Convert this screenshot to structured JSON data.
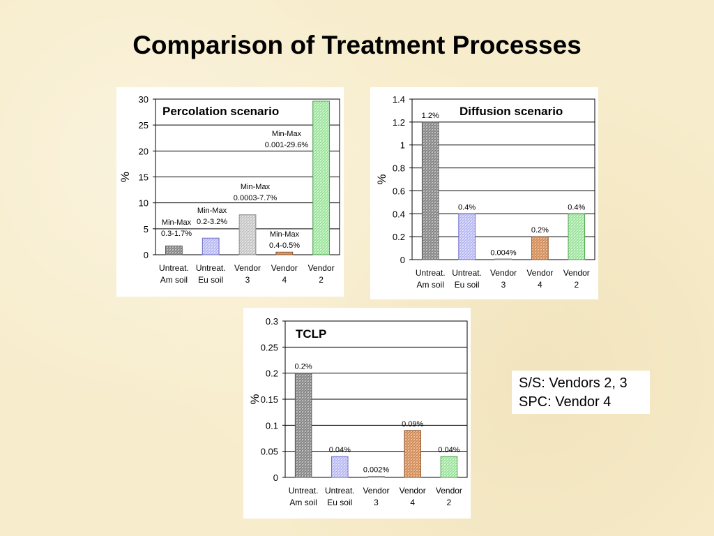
{
  "slide": {
    "title": "Comparison of Treatment Processes"
  },
  "note": {
    "lines": [
      "S/S: Vendors 2, 3",
      "SPC:  Vendor 4"
    ]
  },
  "colors": {
    "background": "#f7eccb",
    "panel": "#ffffff",
    "gridline": "#000000"
  },
  "chart_data": [
    {
      "type": "bar",
      "title": "Percolation scenario",
      "ylabel": "%",
      "ylim": [
        0,
        30
      ],
      "yticks": [
        "0",
        "5",
        "10",
        "15",
        "20",
        "25",
        "30"
      ],
      "categories": [
        [
          "Untreat.",
          "Am soil"
        ],
        [
          "Untreat.",
          "Eu soil"
        ],
        [
          "Vendor",
          "3"
        ],
        [
          "Vendor",
          "4"
        ],
        [
          "Vendor",
          "2"
        ]
      ],
      "values": [
        1.7,
        3.2,
        7.7,
        0.5,
        29.6
      ],
      "bar_patterns": [
        "grey",
        "blue",
        "light-grey",
        "brown",
        "green"
      ],
      "data_labels": [
        [
          "Min-Max",
          "0.3-1.7%"
        ],
        [
          "Min-Max",
          "0.2-3.2%"
        ],
        [
          "Min-Max",
          "0.0003-7.7%"
        ],
        [
          "Min-Max",
          "0.4-0.5%"
        ],
        [
          "Min-Max",
          "0.001-29.6%"
        ]
      ],
      "grid": true
    },
    {
      "type": "bar",
      "title": "Diffusion scenario",
      "ylabel": "%",
      "ylim": [
        0,
        1.4
      ],
      "yticks": [
        "0",
        "0.2",
        "0.4",
        "0.6",
        "0.8",
        "1",
        "1.2",
        "1.4"
      ],
      "categories": [
        [
          "Untreat.",
          "Am soil"
        ],
        [
          "Untreat.",
          "Eu soil"
        ],
        [
          "Vendor",
          "3"
        ],
        [
          "Vendor",
          "4"
        ],
        [
          "Vendor",
          "2"
        ]
      ],
      "values": [
        1.2,
        0.4,
        0.004,
        0.2,
        0.4
      ],
      "bar_patterns": [
        "grey",
        "blue",
        "light-grey",
        "brown",
        "green"
      ],
      "data_labels": [
        [
          "1.2%"
        ],
        [
          "0.4%"
        ],
        [
          "0.004%"
        ],
        [
          "0.2%"
        ],
        [
          "0.4%"
        ]
      ],
      "grid": true
    },
    {
      "type": "bar",
      "title": "TCLP",
      "ylabel": "%",
      "ylim": [
        0,
        0.3
      ],
      "yticks": [
        "0",
        "0.05",
        "0.1",
        "0.15",
        "0.2",
        "0.25",
        "0.3"
      ],
      "categories": [
        [
          "Untreat.",
          "Am soil"
        ],
        [
          "Untreat.",
          "Eu soil"
        ],
        [
          "Vendor",
          "3"
        ],
        [
          "Vendor",
          "4"
        ],
        [
          "Vendor",
          "2"
        ]
      ],
      "values": [
        0.2,
        0.04,
        0.002,
        0.09,
        0.04
      ],
      "bar_patterns": [
        "grey",
        "blue",
        "light-grey",
        "brown",
        "green"
      ],
      "data_labels": [
        [
          "0.2%"
        ],
        [
          "0.04%"
        ],
        [
          "0.002%"
        ],
        [
          "0.09%"
        ],
        [
          "0.04%"
        ]
      ],
      "grid": true
    }
  ]
}
